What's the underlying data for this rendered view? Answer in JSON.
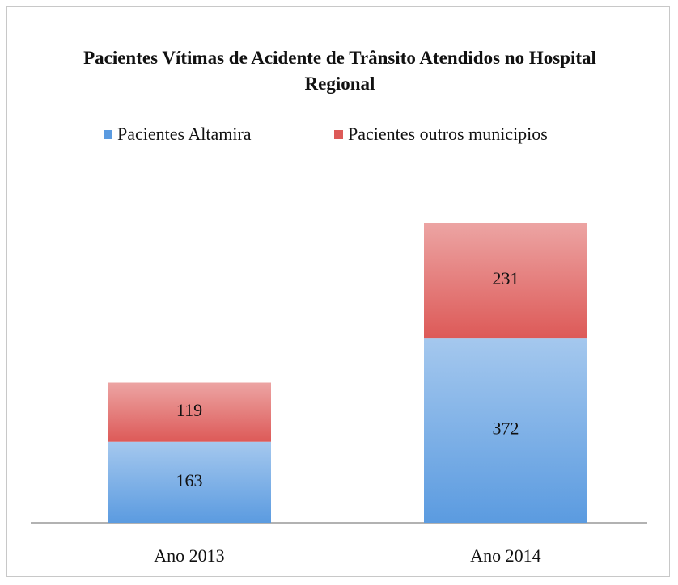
{
  "chart_data": {
    "type": "stacked_bar",
    "title": "Pacientes Vítimas de Acidente de Trânsito Atendidos no Hospital Regional",
    "categories": [
      "Ano 2013",
      "Ano 2014"
    ],
    "series": [
      {
        "name": "Pacientes Altamira",
        "color": "#5b9be0",
        "values": [
          163,
          372
        ]
      },
      {
        "name": "Pacientes outros municipios",
        "color": "#dd5a58",
        "values": [
          119,
          231
        ]
      }
    ]
  }
}
